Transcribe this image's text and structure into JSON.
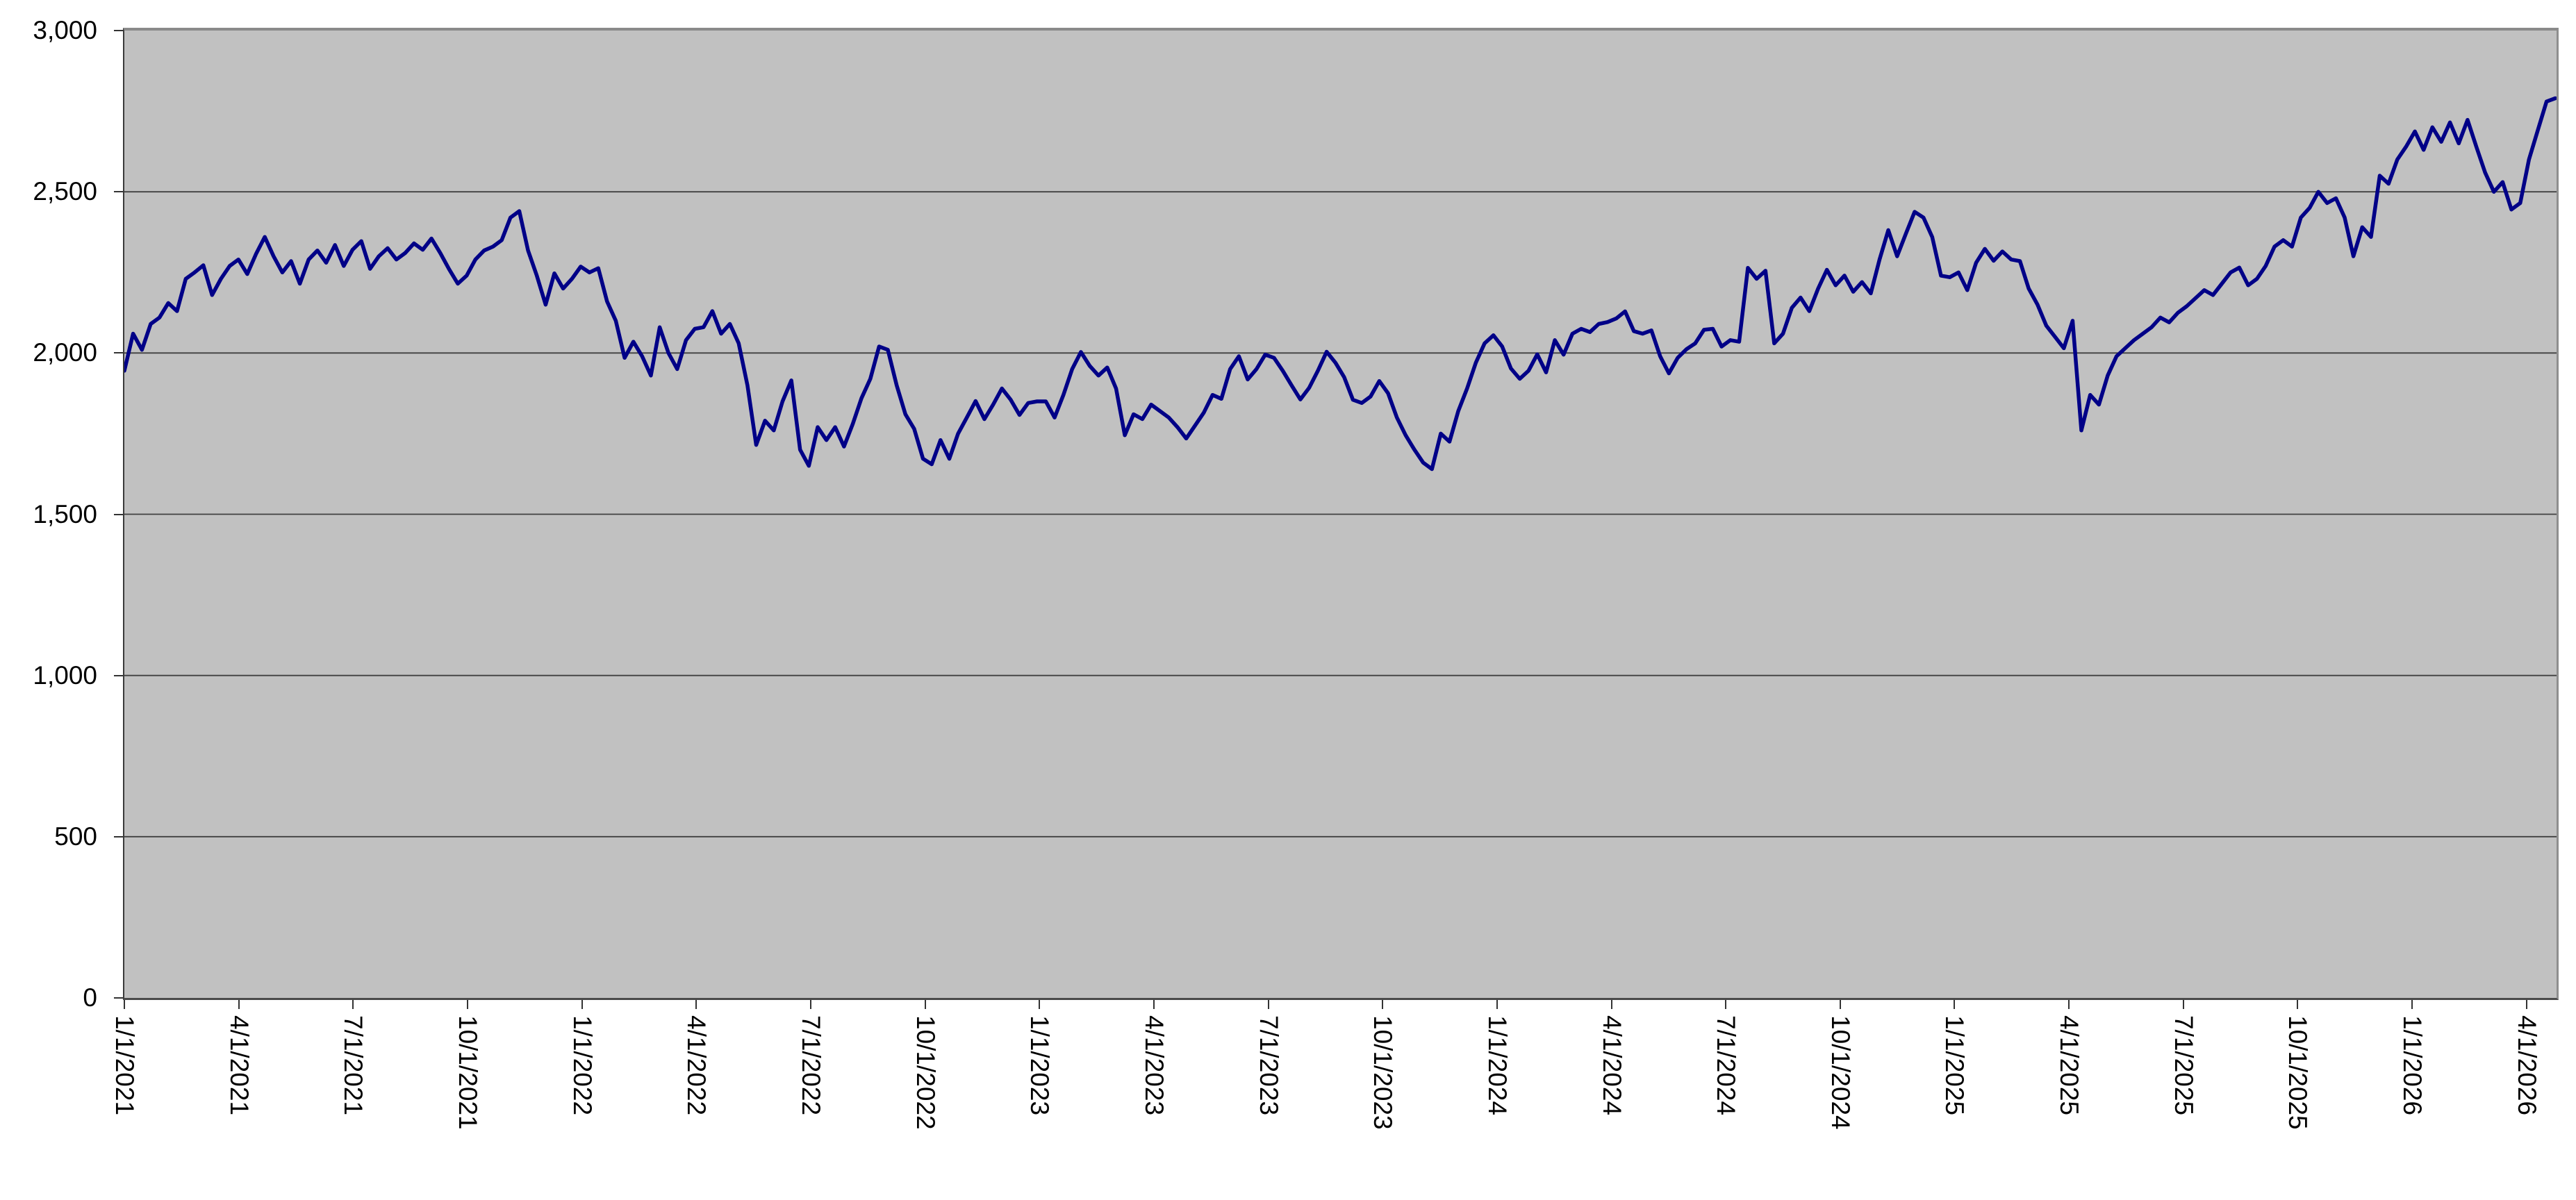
{
  "chart_data": {
    "type": "line",
    "title": "",
    "legend": null,
    "grid": "horizontal-only",
    "colors": {
      "line": "#000087",
      "plot_background": "#c1c1c1",
      "page_background": "#ffffff",
      "gridline": "#404040",
      "plot_border": "#8a8a8a",
      "axis_line": "#3a3a3a",
      "tick": "#333333",
      "label_text": "#000000"
    },
    "y_axis": {
      "min": 0,
      "max": 3000,
      "tick_values": [
        0,
        500,
        1000,
        1500,
        2000,
        2500,
        3000
      ],
      "tick_labels": [
        "0",
        "500",
        "1,000",
        "1,500",
        "2,000",
        "2,500",
        "3,000"
      ]
    },
    "x_axis": {
      "tick_labels": [
        "1/1/2021",
        "4/1/2021",
        "7/1/2021",
        "10/1/2021",
        "1/1/2022",
        "4/1/2022",
        "7/1/2022",
        "10/1/2022",
        "1/1/2023",
        "4/1/2023",
        "7/1/2023",
        "10/1/2023",
        "1/1/2024",
        "4/1/2024",
        "7/1/2024",
        "10/1/2024",
        "1/1/2025",
        "4/1/2025",
        "7/1/2025",
        "10/1/2025",
        "1/1/2026",
        "4/1/2026"
      ],
      "tick_interval_days": 91.24,
      "total_days": 1940
    },
    "series": [
      {
        "name": "price-series",
        "color": "#000087",
        "start_label": "1/1/2021",
        "step_days": 7,
        "values": [
          1945,
          2060,
          2010,
          2090,
          2110,
          2155,
          2130,
          2230,
          2250,
          2272,
          2180,
          2230,
          2270,
          2290,
          2245,
          2307,
          2360,
          2300,
          2250,
          2285,
          2215,
          2290,
          2318,
          2280,
          2335,
          2270,
          2320,
          2347,
          2261,
          2300,
          2325,
          2290,
          2310,
          2340,
          2320,
          2355,
          2310,
          2260,
          2215,
          2240,
          2290,
          2318,
          2330,
          2350,
          2420,
          2440,
          2318,
          2240,
          2150,
          2247,
          2200,
          2230,
          2268,
          2250,
          2263,
          2160,
          2100,
          1985,
          2035,
          1990,
          1930,
          2080,
          2000,
          1950,
          2040,
          2075,
          2080,
          2130,
          2060,
          2090,
          2030,
          1900,
          1715,
          1790,
          1760,
          1850,
          1915,
          1700,
          1650,
          1770,
          1730,
          1770,
          1710,
          1780,
          1860,
          1920,
          2020,
          2010,
          1900,
          1810,
          1765,
          1672,
          1655,
          1730,
          1672,
          1750,
          1800,
          1851,
          1795,
          1840,
          1890,
          1855,
          1808,
          1845,
          1850,
          1850,
          1800,
          1870,
          1950,
          2003,
          1960,
          1930,
          1955,
          1890,
          1745,
          1810,
          1795,
          1840,
          1820,
          1800,
          1770,
          1735,
          1775,
          1815,
          1870,
          1858,
          1950,
          1990,
          1918,
          1950,
          1995,
          1985,
          1945,
          1900,
          1856,
          1892,
          1945,
          2004,
          1970,
          1925,
          1855,
          1845,
          1865,
          1913,
          1875,
          1800,
          1745,
          1700,
          1660,
          1640,
          1750,
          1725,
          1820,
          1890,
          1970,
          2030,
          2055,
          2020,
          1952,
          1920,
          1945,
          1996,
          1940,
          2040,
          1995,
          2060,
          2075,
          2065,
          2090,
          2096,
          2107,
          2129,
          2068,
          2060,
          2070,
          1990,
          1937,
          1985,
          2012,
          2030,
          2072,
          2075,
          2020,
          2040,
          2035,
          2264,
          2230,
          2255,
          2030,
          2060,
          2140,
          2172,
          2130,
          2200,
          2258,
          2210,
          2240,
          2190,
          2220,
          2185,
          2290,
          2381,
          2300,
          2370,
          2438,
          2420,
          2360,
          2240,
          2235,
          2250,
          2195,
          2280,
          2323,
          2286,
          2315,
          2290,
          2285,
          2200,
          2150,
          2085,
          2050,
          2015,
          2100,
          1760,
          1870,
          1840,
          1930,
          1990,
          2015,
          2040,
          2060,
          2080,
          2110,
          2095,
          2125,
          2145,
          2170,
          2195,
          2180,
          2215,
          2250,
          2265,
          2210,
          2230,
          2270,
          2330,
          2350,
          2330,
          2420,
          2450,
          2500,
          2465,
          2480,
          2420,
          2300,
          2390,
          2360,
          2550,
          2525,
          2600,
          2640,
          2687,
          2630,
          2700,
          2655,
          2715,
          2650,
          2723,
          2640,
          2560,
          2500,
          2530,
          2445,
          2465,
          2600,
          2690,
          2780,
          2790
        ]
      }
    ]
  }
}
